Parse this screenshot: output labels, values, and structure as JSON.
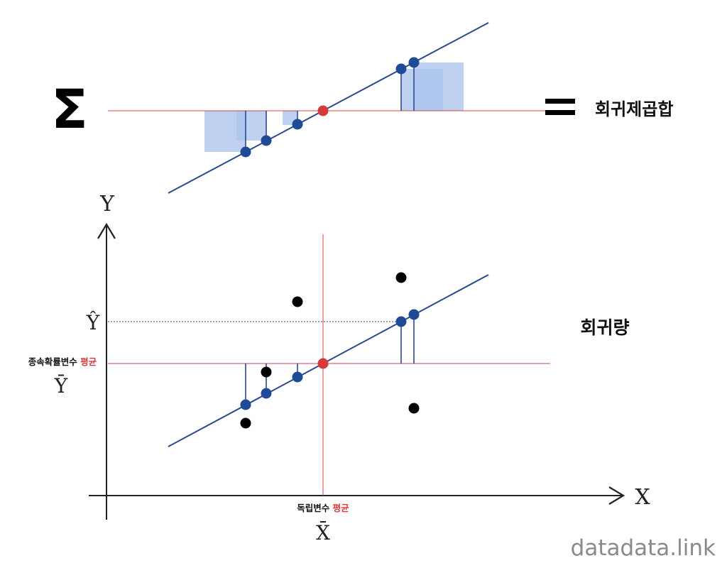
{
  "top": {
    "sigma": "Σ",
    "equals": "=",
    "result_label": "회귀제곱합"
  },
  "bottom": {
    "y_axis": "Y",
    "x_axis": "X",
    "y_hat": "Ŷ",
    "y_mean_label": "종속확률변수",
    "y_mean_accent": "평균",
    "y_bar": "Ȳ",
    "x_mean_label": "독립변수",
    "x_mean_accent": "평균",
    "x_bar": "X̄",
    "result_label": "회귀량"
  },
  "watermark": "datadata.link",
  "colors": {
    "regression_line": "#2b4a8c",
    "points": "#1f4b96",
    "mean_line": "#d64545",
    "mean_point": "#d63b3b",
    "squares": "#a9c2ec",
    "raw_points": "#000000",
    "accent_text": "#d63b3b",
    "watermark": "#8a8a8a"
  }
}
